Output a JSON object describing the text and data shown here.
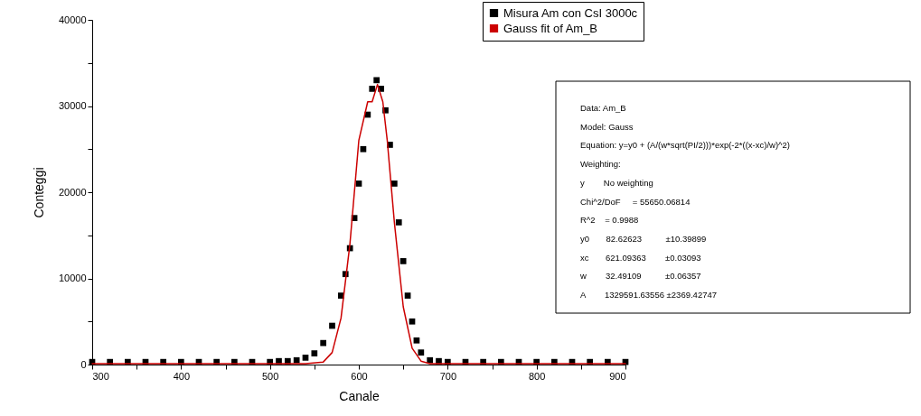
{
  "chart_data": {
    "type": "scatter",
    "xlabel": "Canale",
    "ylabel": "Conteggi",
    "xlim": [
      300,
      900
    ],
    "ylim": [
      0,
      40000
    ],
    "xticks": [
      300,
      {
        "value": 350,
        "label": null
      },
      400,
      {
        "value": 450,
        "label": null
      },
      500,
      {
        "value": 550,
        "label": null
      },
      600,
      {
        "value": 650,
        "label": null
      },
      700,
      {
        "value": 750,
        "label": null
      },
      800,
      {
        "value": 850,
        "label": null
      },
      900
    ],
    "yticks": [
      0,
      {
        "value": 5000,
        "label": null
      },
      10000,
      {
        "value": 15000,
        "label": null
      },
      20000,
      {
        "value": 25000,
        "label": null
      },
      30000,
      {
        "value": 35000,
        "label": null
      },
      40000
    ],
    "grid": false,
    "legend": "top right",
    "marker": "square",
    "series": [
      {
        "name": "Misura Am con CsI 3000c",
        "color": "#000000",
        "x": [
          300,
          320,
          340,
          360,
          380,
          400,
          420,
          440,
          460,
          480,
          500,
          510,
          520,
          530,
          540,
          550,
          560,
          570,
          580,
          585,
          590,
          595,
          600,
          605,
          610,
          615,
          620,
          625,
          630,
          635,
          640,
          645,
          650,
          655,
          660,
          665,
          670,
          680,
          690,
          700,
          720,
          740,
          760,
          780,
          800,
          820,
          840,
          860,
          880,
          900
        ],
        "values": [
          300,
          300,
          300,
          300,
          300,
          300,
          300,
          300,
          300,
          300,
          300,
          400,
          400,
          500,
          800,
          1300,
          2500,
          4500,
          8000,
          10500,
          13500,
          17000,
          21000,
          25000,
          29000,
          32000,
          33000,
          32000,
          29500,
          25500,
          21000,
          16500,
          12000,
          8000,
          5000,
          2800,
          1400,
          500,
          400,
          300,
          300,
          300,
          300,
          300,
          300,
          300,
          300,
          300,
          300,
          300
        ]
      },
      {
        "name": "Gauss fit of Am_B",
        "type": "line",
        "color": "#cc0000",
        "line_style": "solid",
        "marker": "none",
        "x": [
          300,
          500,
          540,
          560,
          570,
          580,
          590,
          600,
          610,
          615,
          621,
          627,
          632,
          640,
          650,
          660,
          670,
          680,
          700,
          900
        ],
        "values": [
          100,
          100,
          100,
          300,
          1400,
          5400,
          14000,
          26000,
          30500,
          30500,
          32500,
          30500,
          26000,
          16500,
          6700,
          1900,
          400,
          100,
          100,
          100
        ]
      }
    ],
    "annotations": [
      "Data: Am_B",
      "Model: Gauss",
      "Equation: y=y0 + (A/(w*sqrt(PI/2)))*exp(-2*((x-xc)/w)^2)",
      "Weighting:",
      "y        No weighting",
      "Chi^2/DoF     = 55650.06814",
      "R^2    = 0.9988",
      "y0       82.62623          ±10.39899",
      "xc       621.09363        ±0.03093",
      "w        32.49109          ±0.06357",
      "A        1329591.63556 ±2369.42747"
    ]
  }
}
